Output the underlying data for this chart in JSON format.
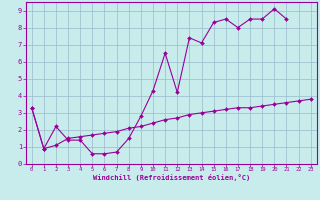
{
  "title": "",
  "xlabel": "Windchill (Refroidissement éolien,°C)",
  "background_color": "#c8ecec",
  "line_color": "#990099",
  "xlim": [
    -0.5,
    23.5
  ],
  "ylim": [
    0,
    9.5
  ],
  "xticks": [
    0,
    1,
    2,
    3,
    4,
    5,
    6,
    7,
    8,
    9,
    10,
    11,
    12,
    13,
    14,
    15,
    16,
    17,
    18,
    19,
    20,
    21,
    22,
    23
  ],
  "yticks": [
    0,
    1,
    2,
    3,
    4,
    5,
    6,
    7,
    8,
    9
  ],
  "grid_color": "#99bbcc",
  "series1_x": [
    0,
    1,
    2,
    3,
    4,
    5,
    6,
    7,
    8,
    9,
    10,
    11,
    12,
    13,
    14,
    15,
    16,
    17,
    18,
    19,
    20,
    21
  ],
  "series1_y": [
    3.3,
    0.9,
    2.2,
    1.4,
    1.4,
    0.6,
    0.6,
    0.7,
    1.5,
    2.8,
    4.3,
    6.5,
    4.2,
    7.4,
    7.1,
    8.3,
    8.5,
    8.0,
    8.5,
    8.5,
    9.1,
    8.5
  ],
  "series2_x": [
    0,
    1,
    2,
    3,
    4,
    5,
    6,
    7,
    8,
    9,
    10,
    11,
    12,
    13,
    14,
    15,
    16,
    17,
    18,
    19,
    20,
    21,
    22,
    23
  ],
  "series2_y": [
    3.3,
    0.9,
    1.1,
    1.5,
    1.6,
    1.7,
    1.8,
    1.9,
    2.1,
    2.2,
    2.4,
    2.6,
    2.7,
    2.9,
    3.0,
    3.1,
    3.2,
    3.3,
    3.3,
    3.4,
    3.5,
    3.6,
    3.7,
    3.8
  ]
}
